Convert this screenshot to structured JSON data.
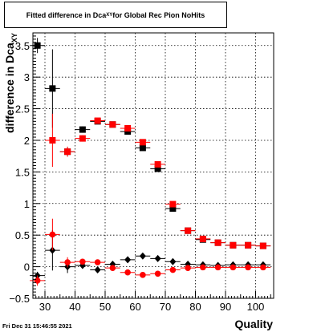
{
  "chart_data": {
    "type": "scatter",
    "title_prefix": "Fitted difference in Dca",
    "title_sub": "XY",
    "title_suffix": " for Global Rec Pion NoHits",
    "ylabel_main": "difference in Dca",
    "ylabel_sub": "XY",
    "xlabel": "Quality",
    "xlim": [
      26,
      106
    ],
    "ylim": [
      -0.5,
      3.7
    ],
    "xticks": [
      30,
      40,
      50,
      60,
      70,
      80,
      90,
      100
    ],
    "yticks": [
      -0.5,
      0,
      0.5,
      1,
      1.5,
      2,
      2.5,
      3,
      3.5
    ],
    "ytick_labels": [
      "−0.5",
      "0",
      "0.5",
      "1",
      "1.5",
      "2",
      "2.5",
      "3",
      "3.5"
    ],
    "grid": true,
    "series": [
      {
        "marker": "square",
        "color": "#000000",
        "points": [
          {
            "x": 27.5,
            "y": 3.5,
            "err": 0.12
          },
          {
            "x": 32.5,
            "y": 2.82,
            "err": 0.62
          },
          {
            "x": 37.5,
            "y": 1.82,
            "err": 0.06
          },
          {
            "x": 42.5,
            "y": 2.17,
            "err": 0.05
          },
          {
            "x": 47.5,
            "y": 2.3,
            "err": 0.03
          },
          {
            "x": 52.5,
            "y": 2.25,
            "err": 0.03
          },
          {
            "x": 57.5,
            "y": 2.14,
            "err": 0.03
          },
          {
            "x": 62.5,
            "y": 1.88,
            "err": 0.03
          },
          {
            "x": 67.5,
            "y": 1.55,
            "err": 0.03
          },
          {
            "x": 72.5,
            "y": 0.92,
            "err": 0.03
          },
          {
            "x": 77.5,
            "y": 0.57,
            "err": 0.02
          },
          {
            "x": 82.5,
            "y": 0.43,
            "err": 0.02
          },
          {
            "x": 87.5,
            "y": 0.38,
            "err": 0.02
          },
          {
            "x": 92.5,
            "y": 0.34,
            "err": 0.02
          },
          {
            "x": 97.5,
            "y": 0.34,
            "err": 0.02
          },
          {
            "x": 102.5,
            "y": 0.33,
            "err": 0.02
          }
        ]
      },
      {
        "marker": "square",
        "color": "#ff0000",
        "points": [
          {
            "x": 32.5,
            "y": 2.0,
            "err": 0.42
          },
          {
            "x": 37.5,
            "y": 1.82,
            "err": 0.08
          },
          {
            "x": 42.5,
            "y": 2.03,
            "err": 0.05
          },
          {
            "x": 47.5,
            "y": 2.31,
            "err": 0.03
          },
          {
            "x": 52.5,
            "y": 2.25,
            "err": 0.03
          },
          {
            "x": 57.5,
            "y": 2.19,
            "err": 0.03
          },
          {
            "x": 62.5,
            "y": 1.97,
            "err": 0.03
          },
          {
            "x": 67.5,
            "y": 1.62,
            "err": 0.03
          },
          {
            "x": 72.5,
            "y": 0.99,
            "err": 0.03
          },
          {
            "x": 77.5,
            "y": 0.57,
            "err": 0.02
          },
          {
            "x": 82.5,
            "y": 0.44,
            "err": 0.02
          },
          {
            "x": 87.5,
            "y": 0.38,
            "err": 0.02
          },
          {
            "x": 92.5,
            "y": 0.34,
            "err": 0.02
          },
          {
            "x": 97.5,
            "y": 0.34,
            "err": 0.02
          },
          {
            "x": 102.5,
            "y": 0.33,
            "err": 0.02
          }
        ]
      },
      {
        "marker": "diamond",
        "color": "#000000",
        "points": [
          {
            "x": 27.5,
            "y": -0.14,
            "err": 0.06
          },
          {
            "x": 32.5,
            "y": 0.26,
            "err": 0.32
          },
          {
            "x": 37.5,
            "y": 0.0,
            "err": 0.1
          },
          {
            "x": 42.5,
            "y": 0.02,
            "err": 0.05
          },
          {
            "x": 47.5,
            "y": -0.05,
            "err": 0.03
          },
          {
            "x": 52.5,
            "y": 0.04,
            "err": 0.03
          },
          {
            "x": 57.5,
            "y": 0.11,
            "err": 0.03
          },
          {
            "x": 62.5,
            "y": 0.17,
            "err": 0.03
          },
          {
            "x": 67.5,
            "y": 0.13,
            "err": 0.03
          },
          {
            "x": 72.5,
            "y": 0.08,
            "err": 0.03
          },
          {
            "x": 77.5,
            "y": 0.04,
            "err": 0.02
          },
          {
            "x": 82.5,
            "y": 0.03,
            "err": 0.02
          },
          {
            "x": 87.5,
            "y": 0.02,
            "err": 0.02
          },
          {
            "x": 92.5,
            "y": 0.03,
            "err": 0.02
          },
          {
            "x": 97.5,
            "y": 0.03,
            "err": 0.02
          },
          {
            "x": 102.5,
            "y": 0.03,
            "err": 0.02
          }
        ]
      },
      {
        "marker": "circle",
        "color": "#ff0000",
        "points": [
          {
            "x": 27.5,
            "y": -0.22,
            "err": 0.08
          },
          {
            "x": 32.5,
            "y": 0.51,
            "err": 0.25
          },
          {
            "x": 37.5,
            "y": 0.07,
            "err": 0.08
          },
          {
            "x": 42.5,
            "y": 0.08,
            "err": 0.04
          },
          {
            "x": 47.5,
            "y": 0.07,
            "err": 0.03
          },
          {
            "x": 52.5,
            "y": -0.02,
            "err": 0.03
          },
          {
            "x": 57.5,
            "y": -0.09,
            "err": 0.03
          },
          {
            "x": 62.5,
            "y": -0.13,
            "err": 0.03
          },
          {
            "x": 67.5,
            "y": -0.11,
            "err": 0.03
          },
          {
            "x": 72.5,
            "y": -0.05,
            "err": 0.03
          },
          {
            "x": 77.5,
            "y": -0.02,
            "err": 0.02
          },
          {
            "x": 82.5,
            "y": -0.01,
            "err": 0.02
          },
          {
            "x": 87.5,
            "y": -0.01,
            "err": 0.02
          },
          {
            "x": 92.5,
            "y": -0.01,
            "err": 0.02
          },
          {
            "x": 97.5,
            "y": -0.01,
            "err": 0.02
          },
          {
            "x": 102.5,
            "y": -0.01,
            "err": 0.02
          }
        ]
      }
    ]
  },
  "footer": {
    "timestamp": "Fri Dec 31 15:46:55 2021"
  }
}
